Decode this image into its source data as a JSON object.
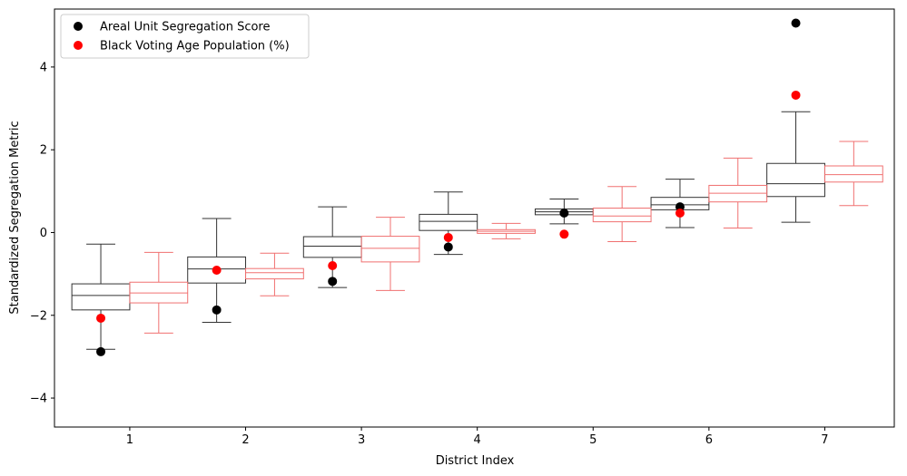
{
  "chart_data": {
    "type": "box",
    "xlabel": "District Index",
    "ylabel": "Standardized Segregation Metric",
    "xlim": [
      0.35,
      7.6
    ],
    "ylim": [
      -4.7,
      5.4
    ],
    "xticks": [
      "1",
      "2",
      "3",
      "4",
      "5",
      "6",
      "7"
    ],
    "yticks": [
      -4,
      -2,
      0,
      2,
      4
    ],
    "ytick_labels": [
      "−4",
      "−2",
      "0",
      "2",
      "4"
    ],
    "grid": false,
    "legend": {
      "placement": "top-left",
      "entries": [
        "Areal Unit Segregation Score",
        "Black Voting Age Population (%)"
      ]
    },
    "colors": {
      "black_series": "#000000",
      "red_series": "#ff0000",
      "black_box": "#333333",
      "red_box": "#f07070"
    },
    "box_series": [
      {
        "color_key": "black_box",
        "offset": -0.25,
        "boxes": [
          {
            "district": 1,
            "whislo": -2.82,
            "q1": -1.87,
            "med": -1.52,
            "q3": -1.24,
            "whishi": -0.28
          },
          {
            "district": 2,
            "whislo": -2.17,
            "q1": -1.22,
            "med": -0.88,
            "q3": -0.59,
            "whishi": 0.34
          },
          {
            "district": 3,
            "whislo": -1.33,
            "q1": -0.6,
            "med": -0.33,
            "q3": -0.1,
            "whishi": 0.62
          },
          {
            "district": 4,
            "whislo": -0.53,
            "q1": 0.05,
            "med": 0.27,
            "q3": 0.44,
            "whishi": 0.98
          },
          {
            "district": 5,
            "whislo": 0.21,
            "q1": 0.43,
            "med": 0.5,
            "q3": 0.57,
            "whishi": 0.81
          },
          {
            "district": 6,
            "whislo": 0.12,
            "q1": 0.55,
            "med": 0.67,
            "q3": 0.85,
            "whishi": 1.29
          },
          {
            "district": 7,
            "whislo": 0.25,
            "q1": 0.87,
            "med": 1.18,
            "q3": 1.67,
            "whishi": 2.92
          }
        ]
      },
      {
        "color_key": "red_box",
        "offset": 0.25,
        "boxes": [
          {
            "district": 1,
            "whislo": -2.43,
            "q1": -1.7,
            "med": -1.46,
            "q3": -1.2,
            "whishi": -0.48
          },
          {
            "district": 2,
            "whislo": -1.53,
            "q1": -1.12,
            "med": -0.97,
            "q3": -0.87,
            "whishi": -0.5
          },
          {
            "district": 3,
            "whislo": -1.4,
            "q1": -0.71,
            "med": -0.38,
            "q3": -0.09,
            "whishi": 0.37
          },
          {
            "district": 4,
            "whislo": -0.15,
            "q1": -0.02,
            "med": 0.03,
            "q3": 0.07,
            "whishi": 0.22
          },
          {
            "district": 5,
            "whislo": -0.22,
            "q1": 0.26,
            "med": 0.4,
            "q3": 0.59,
            "whishi": 1.11
          },
          {
            "district": 6,
            "whislo": 0.11,
            "q1": 0.74,
            "med": 0.95,
            "q3": 1.14,
            "whishi": 1.8
          },
          {
            "district": 7,
            "whislo": 0.65,
            "q1": 1.22,
            "med": 1.4,
            "q3": 1.61,
            "whishi": 2.2
          }
        ]
      }
    ],
    "point_series": [
      {
        "name": "Areal Unit Segregation Score",
        "color_key": "black_series",
        "points": [
          {
            "x": 0.75,
            "y": -2.88
          },
          {
            "x": 1.75,
            "y": -1.87
          },
          {
            "x": 2.75,
            "y": -1.18
          },
          {
            "x": 3.75,
            "y": -0.35
          },
          {
            "x": 4.75,
            "y": 0.47
          },
          {
            "x": 5.75,
            "y": 0.62
          },
          {
            "x": 6.75,
            "y": 5.06
          }
        ]
      },
      {
        "name": "Black Voting Age Population (%)",
        "color_key": "red_series",
        "points": [
          {
            "x": 0.75,
            "y": -2.07
          },
          {
            "x": 1.75,
            "y": -0.91
          },
          {
            "x": 2.75,
            "y": -0.8
          },
          {
            "x": 3.75,
            "y": -0.12
          },
          {
            "x": 4.75,
            "y": -0.04
          },
          {
            "x": 5.75,
            "y": 0.47
          },
          {
            "x": 6.75,
            "y": 3.32
          }
        ]
      }
    ]
  }
}
